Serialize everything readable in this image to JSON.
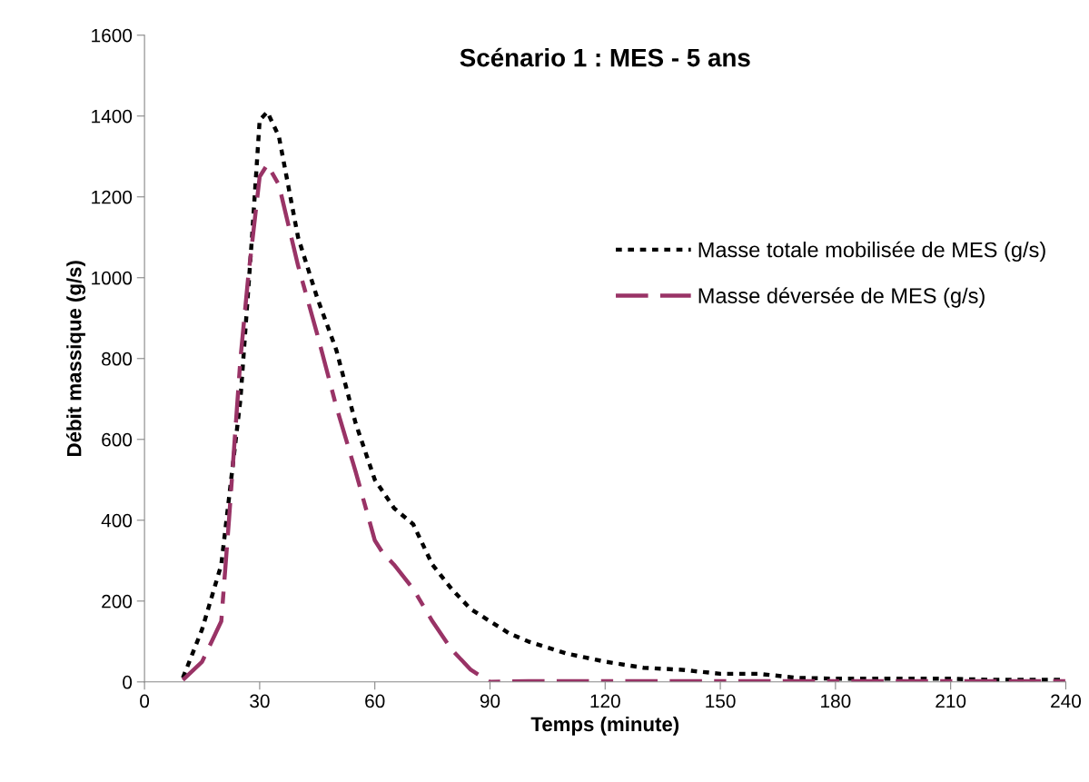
{
  "chart_data": {
    "type": "line",
    "title": "Scénario 1 : MES - 5 ans",
    "xlabel": "Temps (minute)",
    "ylabel": "Débit massique (g/s)",
    "xlim": [
      0,
      240
    ],
    "xticks": [
      0,
      30,
      60,
      90,
      120,
      150,
      180,
      210,
      240
    ],
    "ylim": [
      0,
      1600
    ],
    "yticks": [
      0,
      200,
      400,
      600,
      800,
      1000,
      1200,
      1400,
      1600
    ],
    "grid": false,
    "legend": "right",
    "marker": "none",
    "series": [
      {
        "name": "Masse totale mobilisée de MES (g/s)",
        "color": "#000000",
        "line_style": "dotted",
        "x": [
          10,
          15,
          20,
          25,
          28,
          30,
          32,
          35,
          40,
          45,
          50,
          55,
          60,
          65,
          70,
          75,
          80,
          85,
          90,
          95,
          100,
          110,
          120,
          130,
          140,
          150,
          160,
          170,
          180,
          200,
          210,
          220,
          240
        ],
        "values": [
          10,
          130,
          290,
          700,
          1100,
          1390,
          1410,
          1350,
          1100,
          950,
          820,
          640,
          500,
          430,
          390,
          290,
          230,
          180,
          150,
          120,
          100,
          70,
          50,
          35,
          30,
          20,
          20,
          10,
          8,
          8,
          8,
          5,
          5
        ]
      },
      {
        "name": "Masse déversée de MES (g/s)",
        "color": "#993366",
        "line_style": "dashed",
        "x": [
          10,
          15,
          20,
          22,
          25,
          27,
          30,
          32,
          35,
          40,
          45,
          50,
          55,
          60,
          62,
          65,
          70,
          75,
          80,
          85,
          90,
          100,
          120,
          150,
          180,
          210,
          240
        ],
        "values": [
          5,
          50,
          150,
          400,
          800,
          1000,
          1250,
          1280,
          1230,
          1030,
          860,
          680,
          520,
          350,
          320,
          290,
          230,
          150,
          80,
          30,
          0,
          2,
          2,
          2,
          2,
          2,
          2
        ]
      }
    ]
  }
}
